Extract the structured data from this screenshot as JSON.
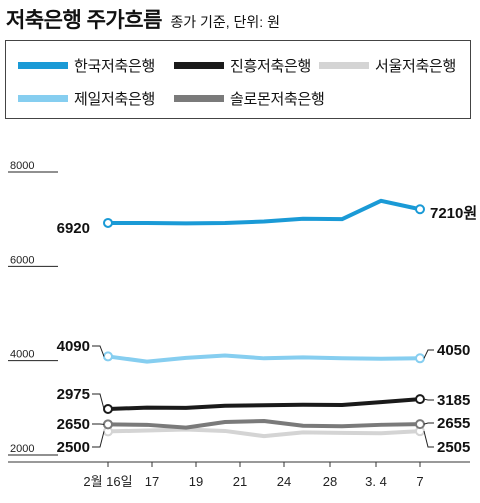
{
  "title": "저축은행 주가흐름",
  "subtitle": "종가 기준, 단위: 원",
  "legend": [
    {
      "name": "한국저축은행",
      "color": "#1a9ad6"
    },
    {
      "name": "진흥저축은행",
      "color": "#1a1a1a"
    },
    {
      "name": "서울저축은행",
      "color": "#d4d4d4"
    },
    {
      "name": "제일저축은행",
      "color": "#86cef0"
    },
    {
      "name": "솔로몬저축은행",
      "color": "#7a7a7a"
    }
  ],
  "chart_data": {
    "type": "line",
    "title": "저축은행 주가흐름",
    "subtitle": "종가 기준, 단위: 원",
    "xlabel": "",
    "ylabel": "",
    "ylim": [
      2000,
      8000
    ],
    "y_ticks": [
      "8000",
      "6000",
      "4000",
      "2000"
    ],
    "x_ticks": [
      "2월 16일",
      "17",
      "19",
      "21",
      "24",
      "28",
      "3. 4",
      "7"
    ],
    "grid": false,
    "series": [
      {
        "name": "한국저축은행",
        "color": "#1a9ad6",
        "values": [
          6920,
          6920,
          6910,
          6920,
          6950,
          7010,
          7000,
          7390,
          7210
        ]
      },
      {
        "name": "제일저축은행",
        "color": "#86cef0",
        "values": [
          4090,
          3980,
          4060,
          4110,
          4050,
          4070,
          4050,
          4040,
          4050
        ]
      },
      {
        "name": "진흥저축은행",
        "color": "#1a1a1a",
        "values": [
          2975,
          3005,
          3000,
          3045,
          3055,
          3065,
          3060,
          3120,
          3185
        ]
      },
      {
        "name": "솔로몬저축은행",
        "color": "#7a7a7a",
        "values": [
          2650,
          2640,
          2580,
          2700,
          2720,
          2620,
          2610,
          2640,
          2655
        ]
      },
      {
        "name": "서울저축은행",
        "color": "#d4d4d4",
        "values": [
          2500,
          2520,
          2540,
          2510,
          2400,
          2480,
          2470,
          2460,
          2505
        ]
      }
    ],
    "value_labels": [
      {
        "series": "한국저축은행",
        "start": "6920",
        "end": "7210원"
      },
      {
        "series": "제일저축은행",
        "start": "4090",
        "end": "4050"
      },
      {
        "series": "진흥저축은행",
        "start": "2975",
        "end": "3185"
      },
      {
        "series": "솔로몬저축은행",
        "start": "2650",
        "end": "2655"
      },
      {
        "series": "서울저축은행",
        "start": "2500",
        "end": "2505"
      }
    ]
  }
}
